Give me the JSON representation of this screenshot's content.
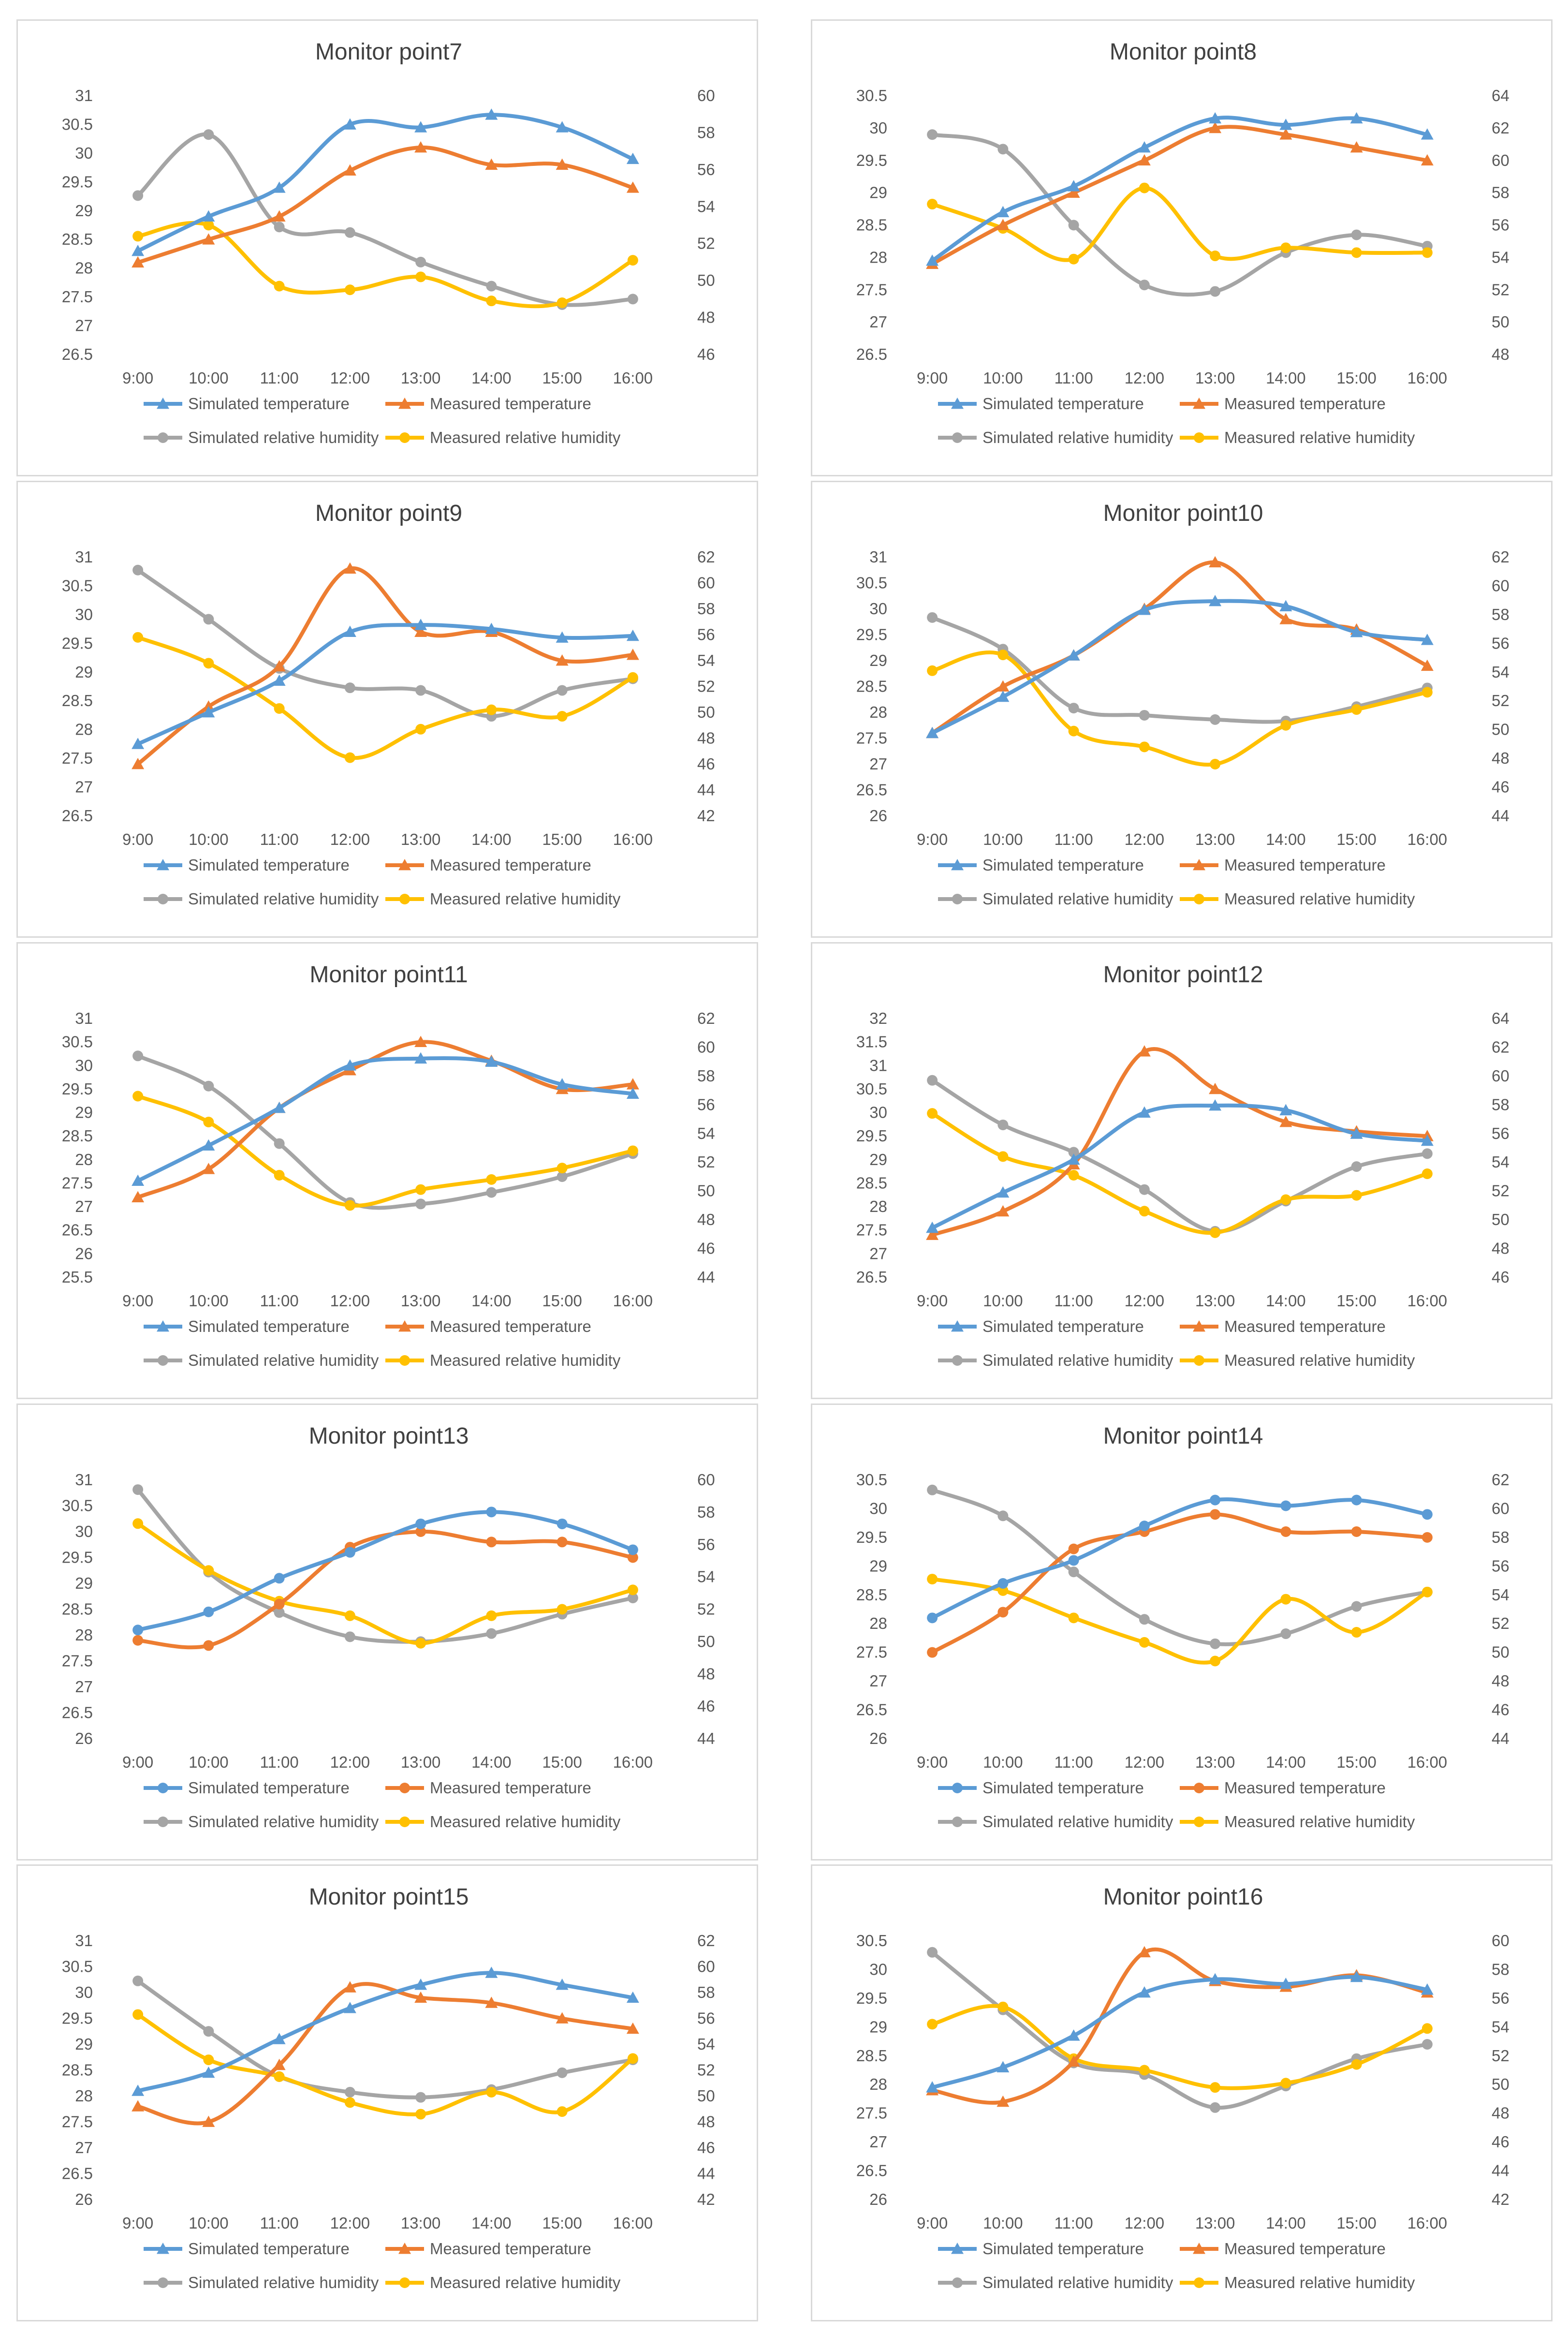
{
  "colors": {
    "sim_t": "#5b9bd5",
    "meas_t": "#ed7d31",
    "sim_h": "#a5a5a5",
    "meas_h": "#ffc000"
  },
  "legend": {
    "sim_t": "Simulated temperature",
    "meas_t": "Measured temperature",
    "sim_h": "Simulated relative humidity",
    "meas_h": "Measured relative humidity"
  },
  "chart_data": [
    {
      "type": "line",
      "title": "Monitor point7",
      "categories": [
        "9:00",
        "10:00",
        "11:00",
        "12:00",
        "13:00",
        "14:00",
        "15:00",
        "16:00"
      ],
      "ylim": [
        26.5,
        31
      ],
      "y2lim": [
        46,
        60
      ],
      "yticks": [
        "26.5",
        "27",
        "27.5",
        "28",
        "28.5",
        "29",
        "29.5",
        "30",
        "30.5",
        "31"
      ],
      "y2ticks": [
        "46",
        "48",
        "50",
        "52",
        "54",
        "56",
        "58",
        "60"
      ],
      "temp_marker": "triangle",
      "series": [
        {
          "key": "sim_t",
          "axis": "left",
          "values": [
            28.3,
            28.9,
            29.4,
            30.5,
            30.45,
            30.67,
            30.45,
            29.9
          ]
        },
        {
          "key": "meas_t",
          "axis": "left",
          "values": [
            28.1,
            28.5,
            28.9,
            29.7,
            30.1,
            29.8,
            29.8,
            29.4
          ]
        },
        {
          "key": "sim_h",
          "axis": "right",
          "values": [
            54.6,
            57.9,
            52.9,
            52.6,
            51.0,
            49.7,
            48.7,
            49.0
          ]
        },
        {
          "key": "meas_h",
          "axis": "right",
          "values": [
            52.4,
            53.0,
            49.7,
            49.5,
            50.2,
            48.9,
            48.8,
            51.1
          ]
        }
      ]
    },
    {
      "type": "line",
      "title": "Monitor point8",
      "categories": [
        "9:00",
        "10:00",
        "11:00",
        "12:00",
        "13:00",
        "14:00",
        "15:00",
        "16:00"
      ],
      "ylim": [
        26.5,
        30.5
      ],
      "y2lim": [
        48,
        64
      ],
      "yticks": [
        "26.5",
        "27",
        "27.5",
        "28",
        "28.5",
        "29",
        "29.5",
        "30",
        "30.5"
      ],
      "y2ticks": [
        "48",
        "50",
        "52",
        "54",
        "56",
        "58",
        "60",
        "62",
        "64"
      ],
      "temp_marker": "triangle",
      "series": [
        {
          "key": "sim_t",
          "axis": "left",
          "values": [
            27.95,
            28.7,
            29.1,
            29.7,
            30.15,
            30.05,
            30.15,
            29.9
          ]
        },
        {
          "key": "meas_t",
          "axis": "left",
          "values": [
            27.9,
            28.5,
            29.0,
            29.5,
            30.0,
            29.9,
            29.7,
            29.5
          ]
        },
        {
          "key": "sim_h",
          "axis": "right",
          "values": [
            61.6,
            60.7,
            56.0,
            52.3,
            51.9,
            54.3,
            55.4,
            54.7
          ]
        },
        {
          "key": "meas_h",
          "axis": "right",
          "values": [
            57.3,
            55.8,
            53.9,
            58.3,
            54.1,
            54.6,
            54.3,
            54.3
          ]
        }
      ]
    },
    {
      "type": "line",
      "title": "Monitor point9",
      "categories": [
        "9:00",
        "10:00",
        "11:00",
        "12:00",
        "13:00",
        "14:00",
        "15:00",
        "16:00"
      ],
      "ylim": [
        26.5,
        31
      ],
      "y2lim": [
        42,
        62
      ],
      "yticks": [
        "26.5",
        "27",
        "27.5",
        "28",
        "28.5",
        "29",
        "29.5",
        "30",
        "30.5",
        "31"
      ],
      "y2ticks": [
        "42",
        "44",
        "46",
        "48",
        "50",
        "52",
        "54",
        "56",
        "58",
        "60",
        "62"
      ],
      "temp_marker": "triangle",
      "series": [
        {
          "key": "sim_t",
          "axis": "left",
          "values": [
            27.75,
            28.3,
            28.85,
            29.7,
            29.82,
            29.75,
            29.6,
            29.63
          ]
        },
        {
          "key": "meas_t",
          "axis": "left",
          "values": [
            27.4,
            28.4,
            29.1,
            30.8,
            29.7,
            29.7,
            29.2,
            29.3
          ]
        },
        {
          "key": "sim_h",
          "axis": "right",
          "values": [
            61.0,
            57.2,
            53.4,
            51.9,
            51.7,
            49.7,
            51.7,
            52.6
          ]
        },
        {
          "key": "meas_h",
          "axis": "right",
          "values": [
            55.8,
            53.8,
            50.3,
            46.5,
            48.7,
            50.2,
            49.7,
            52.7
          ]
        }
      ]
    },
    {
      "type": "line",
      "title": "Monitor point10",
      "categories": [
        "9:00",
        "10:00",
        "11:00",
        "12:00",
        "13:00",
        "14:00",
        "15:00",
        "16:00"
      ],
      "ylim": [
        26,
        31
      ],
      "y2lim": [
        44,
        62
      ],
      "yticks": [
        "26",
        "26.5",
        "27",
        "27.5",
        "28",
        "28.5",
        "29",
        "29.5",
        "30",
        "30.5",
        "31"
      ],
      "y2ticks": [
        "44",
        "46",
        "48",
        "50",
        "52",
        "54",
        "56",
        "58",
        "60",
        "62"
      ],
      "temp_marker": "triangle",
      "series": [
        {
          "key": "sim_t",
          "axis": "left",
          "values": [
            27.6,
            28.3,
            29.1,
            29.98,
            30.15,
            30.05,
            29.55,
            29.4
          ]
        },
        {
          "key": "meas_t",
          "axis": "left",
          "values": [
            27.6,
            28.5,
            29.1,
            30.0,
            30.9,
            29.8,
            29.6,
            28.9
          ]
        },
        {
          "key": "sim_h",
          "axis": "right",
          "values": [
            57.8,
            55.6,
            51.5,
            51.0,
            50.7,
            50.6,
            51.6,
            52.9
          ]
        },
        {
          "key": "meas_h",
          "axis": "right",
          "values": [
            54.1,
            55.2,
            49.9,
            48.8,
            47.6,
            50.3,
            51.4,
            52.6
          ]
        }
      ]
    },
    {
      "type": "line",
      "title": "Monitor point11",
      "categories": [
        "9:00",
        "10:00",
        "11:00",
        "12:00",
        "13:00",
        "14:00",
        "15:00",
        "16:00"
      ],
      "ylim": [
        25.5,
        31
      ],
      "y2lim": [
        44,
        62
      ],
      "yticks": [
        "25.5",
        "26",
        "26.5",
        "27",
        "27.5",
        "28",
        "28.5",
        "29",
        "29.5",
        "30",
        "30.5",
        "31"
      ],
      "y2ticks": [
        "44",
        "46",
        "48",
        "50",
        "52",
        "54",
        "56",
        "58",
        "60",
        "62"
      ],
      "temp_marker": "triangle",
      "series": [
        {
          "key": "sim_t",
          "axis": "left",
          "values": [
            27.55,
            28.3,
            29.1,
            30.0,
            30.15,
            30.08,
            29.6,
            29.4
          ]
        },
        {
          "key": "meas_t",
          "axis": "left",
          "values": [
            27.2,
            27.8,
            29.1,
            29.9,
            30.5,
            30.1,
            29.5,
            29.6
          ]
        },
        {
          "key": "sim_h",
          "axis": "right",
          "values": [
            59.4,
            57.3,
            53.3,
            49.2,
            49.1,
            49.9,
            51.0,
            52.6
          ]
        },
        {
          "key": "meas_h",
          "axis": "right",
          "values": [
            56.6,
            54.8,
            51.1,
            49.0,
            50.1,
            50.8,
            51.6,
            52.8
          ]
        }
      ]
    },
    {
      "type": "line",
      "title": "Monitor point12",
      "categories": [
        "9:00",
        "10:00",
        "11:00",
        "12:00",
        "13:00",
        "14:00",
        "15:00",
        "16:00"
      ],
      "ylim": [
        26.5,
        32
      ],
      "y2lim": [
        46,
        64
      ],
      "yticks": [
        "26.5",
        "27",
        "27.5",
        "28",
        "28.5",
        "29",
        "29.5",
        "30",
        "30.5",
        "31",
        "31.5",
        "32"
      ],
      "y2ticks": [
        "46",
        "48",
        "50",
        "52",
        "54",
        "56",
        "58",
        "60",
        "62",
        "64"
      ],
      "temp_marker": "triangle",
      "series": [
        {
          "key": "sim_t",
          "axis": "left",
          "values": [
            27.55,
            28.3,
            29.0,
            30.0,
            30.15,
            30.05,
            29.55,
            29.4
          ]
        },
        {
          "key": "meas_t",
          "axis": "left",
          "values": [
            27.4,
            27.9,
            28.9,
            31.3,
            30.5,
            29.8,
            29.6,
            29.5
          ]
        },
        {
          "key": "sim_h",
          "axis": "right",
          "values": [
            59.7,
            56.6,
            54.7,
            52.1,
            49.2,
            51.3,
            53.7,
            54.6
          ]
        },
        {
          "key": "meas_h",
          "axis": "right",
          "values": [
            57.4,
            54.4,
            53.1,
            50.6,
            49.1,
            51.4,
            51.7,
            53.2
          ]
        }
      ]
    },
    {
      "type": "line",
      "title": "Monitor point13",
      "categories": [
        "9:00",
        "10:00",
        "11:00",
        "12:00",
        "13:00",
        "14:00",
        "15:00",
        "16:00"
      ],
      "ylim": [
        26,
        31
      ],
      "y2lim": [
        44,
        60
      ],
      "yticks": [
        "26",
        "26.5",
        "27",
        "27.5",
        "28",
        "28.5",
        "29",
        "29.5",
        "30",
        "30.5",
        "31"
      ],
      "y2ticks": [
        "44",
        "46",
        "48",
        "50",
        "52",
        "54",
        "56",
        "58",
        "60"
      ],
      "temp_marker": "circle",
      "series": [
        {
          "key": "sim_t",
          "axis": "left",
          "values": [
            28.1,
            28.45,
            29.1,
            29.6,
            30.15,
            30.38,
            30.15,
            29.65
          ]
        },
        {
          "key": "meas_t",
          "axis": "left",
          "values": [
            27.9,
            27.8,
            28.6,
            29.7,
            30.0,
            29.8,
            29.8,
            29.5
          ]
        },
        {
          "key": "sim_h",
          "axis": "right",
          "values": [
            59.4,
            54.3,
            51.8,
            50.3,
            50.0,
            50.5,
            51.7,
            52.7
          ]
        },
        {
          "key": "meas_h",
          "axis": "right",
          "values": [
            57.3,
            54.4,
            52.5,
            51.6,
            49.9,
            51.6,
            52.0,
            53.2
          ]
        }
      ]
    },
    {
      "type": "line",
      "title": "Monitor point14",
      "categories": [
        "9:00",
        "10:00",
        "11:00",
        "12:00",
        "13:00",
        "14:00",
        "15:00",
        "16:00"
      ],
      "ylim": [
        26,
        30.5
      ],
      "y2lim": [
        44,
        62
      ],
      "yticks": [
        "26",
        "26.5",
        "27",
        "27.5",
        "28",
        "28.5",
        "29",
        "29.5",
        "30",
        "30.5"
      ],
      "y2ticks": [
        "44",
        "46",
        "48",
        "50",
        "52",
        "54",
        "56",
        "58",
        "60",
        "62"
      ],
      "temp_marker": "circle",
      "series": [
        {
          "key": "sim_t",
          "axis": "left",
          "values": [
            28.1,
            28.7,
            29.1,
            29.7,
            30.15,
            30.05,
            30.15,
            29.9
          ]
        },
        {
          "key": "meas_t",
          "axis": "left",
          "values": [
            27.5,
            28.2,
            29.3,
            29.6,
            29.9,
            29.6,
            29.6,
            29.5
          ]
        },
        {
          "key": "sim_h",
          "axis": "right",
          "values": [
            61.3,
            59.5,
            55.6,
            52.3,
            50.6,
            51.3,
            53.2,
            54.2
          ]
        },
        {
          "key": "meas_h",
          "axis": "right",
          "values": [
            55.1,
            54.3,
            52.4,
            50.7,
            49.4,
            53.7,
            51.4,
            54.2
          ]
        }
      ]
    },
    {
      "type": "line",
      "title": "Monitor point15",
      "categories": [
        "9:00",
        "10:00",
        "11:00",
        "12:00",
        "13:00",
        "14:00",
        "15:00",
        "16:00"
      ],
      "ylim": [
        26,
        31
      ],
      "y2lim": [
        42,
        62
      ],
      "yticks": [
        "26",
        "26.5",
        "27",
        "27.5",
        "28",
        "28.5",
        "29",
        "29.5",
        "30",
        "30.5",
        "31"
      ],
      "y2ticks": [
        "42",
        "44",
        "46",
        "48",
        "50",
        "52",
        "54",
        "56",
        "58",
        "60",
        "62"
      ],
      "temp_marker": "triangle",
      "series": [
        {
          "key": "sim_t",
          "axis": "left",
          "values": [
            28.1,
            28.45,
            29.1,
            29.7,
            30.15,
            30.38,
            30.15,
            29.9
          ]
        },
        {
          "key": "meas_t",
          "axis": "left",
          "values": [
            27.8,
            27.5,
            28.6,
            30.1,
            29.9,
            29.8,
            29.5,
            29.3
          ]
        },
        {
          "key": "sim_h",
          "axis": "right",
          "values": [
            58.9,
            55.0,
            51.5,
            50.3,
            49.9,
            50.5,
            51.8,
            52.8
          ]
        },
        {
          "key": "meas_h",
          "axis": "right",
          "values": [
            56.3,
            52.8,
            51.5,
            49.5,
            48.6,
            50.3,
            48.8,
            52.9
          ]
        }
      ]
    },
    {
      "type": "line",
      "title": "Monitor point16",
      "categories": [
        "9:00",
        "10:00",
        "11:00",
        "12:00",
        "13:00",
        "14:00",
        "15:00",
        "16:00"
      ],
      "ylim": [
        26,
        30.5
      ],
      "y2lim": [
        42,
        60
      ],
      "yticks": [
        "26",
        "26.5",
        "27",
        "27.5",
        "28",
        "28.5",
        "29",
        "29.5",
        "30",
        "30.5"
      ],
      "y2ticks": [
        "42",
        "44",
        "46",
        "48",
        "50",
        "52",
        "54",
        "56",
        "58",
        "60"
      ],
      "temp_marker": "triangle",
      "series": [
        {
          "key": "sim_t",
          "axis": "left",
          "values": [
            27.95,
            28.3,
            28.85,
            29.6,
            29.83,
            29.75,
            29.87,
            29.65
          ]
        },
        {
          "key": "meas_t",
          "axis": "left",
          "values": [
            27.9,
            27.7,
            28.4,
            30.3,
            29.8,
            29.7,
            29.9,
            29.6
          ]
        },
        {
          "key": "sim_h",
          "axis": "right",
          "values": [
            59.2,
            55.2,
            51.5,
            50.7,
            48.4,
            49.9,
            51.8,
            52.8
          ]
        },
        {
          "key": "meas_h",
          "axis": "right",
          "values": [
            54.2,
            55.4,
            51.8,
            51.0,
            49.8,
            50.1,
            51.4,
            53.9
          ]
        }
      ]
    }
  ]
}
